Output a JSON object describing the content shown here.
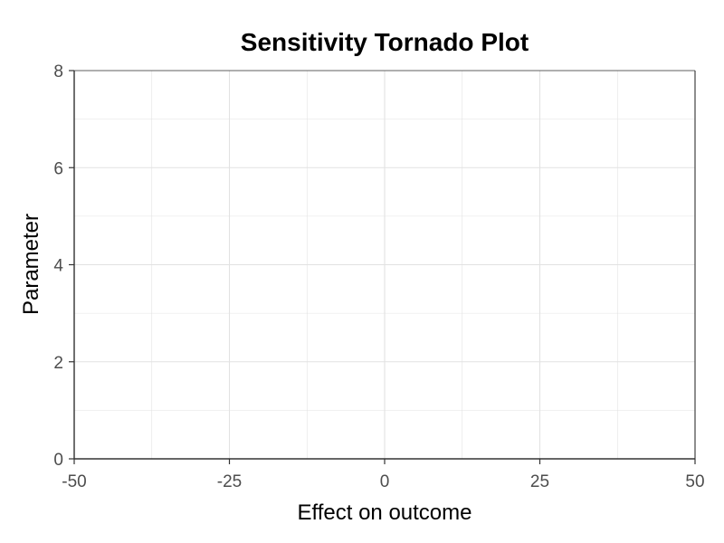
{
  "chart_data": {
    "type": "bar",
    "orientation": "horizontal",
    "title": "Sensitivity Tornado Plot",
    "xlabel": "Effect on outcome",
    "ylabel": "Parameter",
    "xlim": [
      -50,
      50
    ],
    "ylim": [
      0,
      8
    ],
    "x_ticks": [
      -50,
      -25,
      0,
      25,
      50
    ],
    "y_ticks": [
      0,
      2,
      4,
      6,
      8
    ],
    "x_minor": [
      -37.5,
      -12.5,
      12.5,
      37.5
    ],
    "y_minor": [
      1,
      3,
      5,
      7
    ],
    "grid": true,
    "series": [],
    "colors": {
      "grid": "#e2e2e2",
      "axis": "#333333",
      "tick_text": "#4d4d4d",
      "background": "#ffffff"
    }
  }
}
